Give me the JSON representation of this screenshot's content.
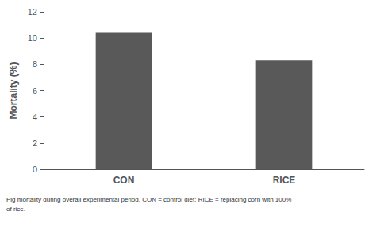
{
  "chart_data": {
    "type": "bar",
    "ylabel": "Mortality (%)",
    "categories": [
      "CON",
      "RICE"
    ],
    "values": [
      10.4,
      8.3
    ],
    "color": "#595959",
    "ylim": [
      0,
      12
    ],
    "yticks": [
      0,
      2,
      4,
      6,
      8,
      10,
      12
    ],
    "grid": false,
    "annotations": [
      "Pig mortality during overall experimental period. CON = control diet; RICE = replacing corn with 100%",
      "of rice."
    ]
  }
}
